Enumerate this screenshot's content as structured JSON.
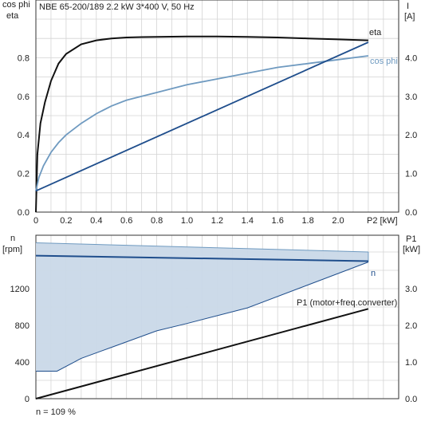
{
  "chart_data": [
    {
      "type": "line",
      "title": "NBE 65-200/189   2.2 kW   3*400 V, 50 Hz",
      "xlabel": "P2 [kW]",
      "ylabel_left": [
        "cos phi",
        "eta"
      ],
      "ylabel_right": [
        "I",
        "[A]"
      ],
      "xlim": [
        0,
        2.2
      ],
      "ylim_left": [
        0,
        1.0
      ],
      "ylim_right": [
        0,
        5.0
      ],
      "x_ticks": [
        "0",
        "0.2",
        "0.4",
        "0.6",
        "0.8",
        "1.0",
        "1.2",
        "1.4",
        "1.6",
        "1.8",
        "2.0"
      ],
      "y_ticks_left": [
        "0.0",
        "0.2",
        "0.4",
        "0.6",
        "0.8"
      ],
      "y_ticks_right": [
        "0.0",
        "1.0",
        "2.0",
        "3.0",
        "4.0"
      ],
      "grid": true,
      "series": [
        {
          "name": "eta",
          "axis": "left",
          "color": "#111111",
          "x": [
            0.0,
            0.01,
            0.03,
            0.06,
            0.1,
            0.15,
            0.2,
            0.3,
            0.4,
            0.5,
            0.6,
            0.7,
            0.8,
            1.0,
            1.2,
            1.4,
            1.6,
            1.8,
            2.0,
            2.2
          ],
          "y": [
            0.0,
            0.3,
            0.46,
            0.57,
            0.68,
            0.77,
            0.82,
            0.87,
            0.89,
            0.9,
            0.905,
            0.907,
            0.908,
            0.91,
            0.91,
            0.908,
            0.905,
            0.9,
            0.895,
            0.89
          ]
        },
        {
          "name": "cos phi",
          "axis": "left",
          "color": "#6f9ac0",
          "x": [
            0.0,
            0.02,
            0.05,
            0.1,
            0.15,
            0.2,
            0.3,
            0.4,
            0.5,
            0.6,
            0.7,
            0.8,
            1.0,
            1.2,
            1.4,
            1.6,
            1.8,
            2.0,
            2.2
          ],
          "y": [
            0.11,
            0.18,
            0.24,
            0.31,
            0.36,
            0.4,
            0.46,
            0.51,
            0.55,
            0.58,
            0.6,
            0.62,
            0.66,
            0.69,
            0.72,
            0.75,
            0.77,
            0.79,
            0.81
          ]
        },
        {
          "name": "I",
          "axis": "right",
          "color": "#1f4e8c",
          "x": [
            0.0,
            2.2
          ],
          "y": [
            0.55,
            4.4
          ]
        }
      ]
    },
    {
      "type": "area",
      "xlabel": "",
      "ylabel_left": [
        "n",
        "[rpm]"
      ],
      "ylabel_right": [
        "P1",
        "[kW]"
      ],
      "xlim": [
        0,
        2.2
      ],
      "ylim_left": [
        0,
        1800
      ],
      "ylim_right": [
        0,
        4.0
      ],
      "y_ticks_left": [
        "0",
        "400",
        "800",
        "1200"
      ],
      "y_ticks_right": [
        "0.0",
        "1.0",
        "2.0",
        "3.0"
      ],
      "grid": true,
      "band": {
        "color": "#c9d8e8",
        "upper": {
          "x": [
            0.0,
            2.2
          ],
          "y": [
            1700,
            1600
          ]
        },
        "lower": {
          "x": [
            0.0,
            0.14,
            0.3,
            0.5,
            0.8,
            1.0,
            1.4,
            1.8,
            2.2
          ],
          "y": [
            300,
            300,
            440,
            560,
            740,
            820,
            990,
            1240,
            1490
          ]
        }
      },
      "series": [
        {
          "name": "n",
          "axis": "left",
          "color": "#1f4e8c",
          "x": [
            0.0,
            2.2
          ],
          "y": [
            1560,
            1500
          ]
        },
        {
          "name": "P1 (motor+freq.converter)",
          "axis": "right",
          "color": "#111111",
          "x": [
            0.0,
            2.2
          ],
          "y": [
            0.0,
            2.45
          ]
        }
      ],
      "footer": "n = 109 %"
    }
  ]
}
